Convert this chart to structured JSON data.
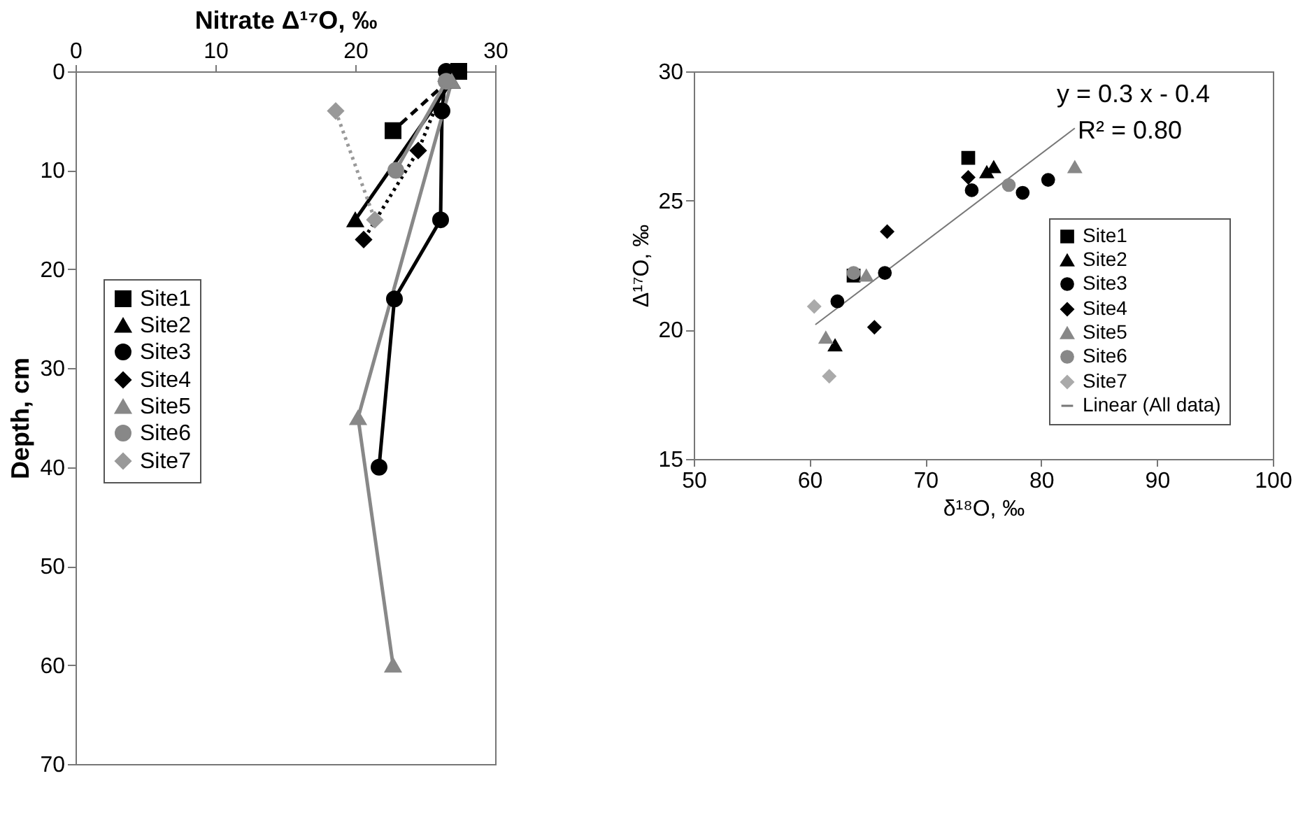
{
  "chart_data": [
    {
      "type": "line",
      "xlabel": "Nitrate Δ¹⁷O, ‰",
      "ylabel": "Depth, cm",
      "xlim": [
        0,
        30
      ],
      "xticks": [
        0,
        10,
        20,
        30
      ],
      "ylim": [
        70,
        0
      ],
      "yticks": [
        0,
        10,
        20,
        30,
        40,
        50,
        60,
        70
      ],
      "grid": false,
      "legend": "left",
      "series": [
        {
          "name": "Site1",
          "color": "#000000",
          "marker": "square",
          "line_style": "dashed",
          "x": [
            27.4,
            22.7
          ],
          "values": [
            0,
            6
          ]
        },
        {
          "name": "Site2",
          "color": "#000000",
          "marker": "triangle",
          "line_style": "solid",
          "x": [
            26.9,
            20.0
          ],
          "values": [
            1,
            15
          ]
        },
        {
          "name": "Site3",
          "color": "#000000",
          "marker": "circle",
          "line_style": "solid",
          "x": [
            26.5,
            26.2,
            26.1,
            22.8,
            21.7
          ],
          "values": [
            0,
            4,
            15,
            23,
            40
          ]
        },
        {
          "name": "Site4",
          "color": "#000000",
          "marker": "diamond",
          "line_style": "dotted",
          "x": [
            26.5,
            24.5,
            20.6
          ],
          "values": [
            1,
            8,
            17
          ]
        },
        {
          "name": "Site5",
          "color": "#888888",
          "marker": "triangle",
          "line_style": "solid",
          "x": [
            26.9,
            20.2,
            22.7
          ],
          "values": [
            1,
            35,
            60
          ]
        },
        {
          "name": "Site6",
          "color": "#888888",
          "marker": "circle",
          "line_style": "solid",
          "x": [
            26.5,
            22.9
          ],
          "values": [
            1,
            10
          ]
        },
        {
          "name": "Site7",
          "color": "#999999",
          "marker": "diamond",
          "line_style": "dotted",
          "x": [
            18.6,
            21.4
          ],
          "values": [
            4,
            15
          ]
        }
      ]
    },
    {
      "type": "scatter",
      "xlabel": "δ¹⁸O, ‰",
      "ylabel": "Δ¹⁷O, ‰",
      "xlim": [
        50,
        100
      ],
      "xticks": [
        50,
        60,
        70,
        80,
        90,
        100
      ],
      "ylim": [
        15,
        30
      ],
      "yticks": [
        15,
        20,
        25,
        30
      ],
      "grid": false,
      "legend": "bottom right",
      "annotations": [
        "y = 0.3 x - 0.4",
        "R² = 0.80"
      ],
      "series": [
        {
          "name": "Site1",
          "color": "#000000",
          "marker": "square",
          "x": [
            73.7,
            63.8
          ],
          "values": [
            26.65,
            22.1
          ]
        },
        {
          "name": "Site2",
          "color": "#000000",
          "marker": "triangle",
          "x": [
            75.3,
            75.9,
            62.2
          ],
          "values": [
            26.1,
            26.3,
            19.4
          ]
        },
        {
          "name": "Site3",
          "color": "#000000",
          "marker": "circle",
          "x": [
            74.0,
            78.4,
            80.6,
            66.5,
            62.4
          ],
          "values": [
            25.4,
            25.3,
            25.8,
            22.2,
            21.1
          ]
        },
        {
          "name": "Site4",
          "color": "#000000",
          "marker": "diamond",
          "x": [
            73.7,
            66.7,
            65.6
          ],
          "values": [
            25.9,
            23.8,
            20.1
          ]
        },
        {
          "name": "Site5",
          "color": "#888888",
          "marker": "triangle",
          "x": [
            82.9,
            64.9,
            61.4
          ],
          "values": [
            26.3,
            22.1,
            19.7
          ]
        },
        {
          "name": "Site6",
          "color": "#888888",
          "marker": "circle",
          "x": [
            77.2,
            63.8
          ],
          "values": [
            25.6,
            22.2
          ]
        },
        {
          "name": "Site7",
          "color": "#aaaaaa",
          "marker": "diamond",
          "x": [
            60.4,
            61.7
          ],
          "values": [
            20.9,
            18.2
          ]
        },
        {
          "name": "Linear (All data)",
          "type": "line",
          "color": "#777777",
          "marker": "none",
          "x": [
            60.5,
            82.9
          ],
          "values": [
            20.2,
            27.8
          ]
        }
      ]
    }
  ]
}
